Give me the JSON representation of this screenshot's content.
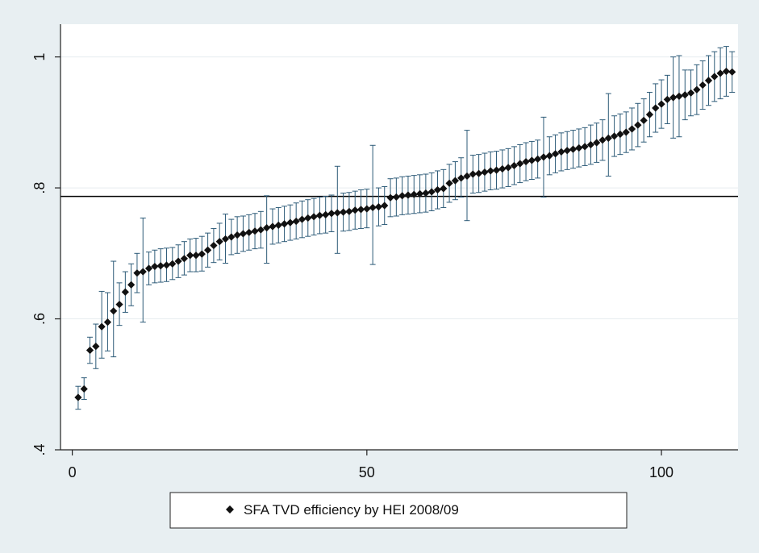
{
  "chart_data": {
    "type": "scatter",
    "title": "",
    "xlabel": "",
    "ylabel": "",
    "xlim": [
      -2,
      113
    ],
    "ylim": [
      0.4,
      1.05
    ],
    "x_ticks": [
      {
        "value": 0,
        "label": "0"
      },
      {
        "value": 50,
        "label": "50"
      },
      {
        "value": 100,
        "label": "100"
      }
    ],
    "y_ticks": [
      {
        "value": 0.4,
        "label": ".4"
      },
      {
        "value": 0.6,
        "label": ".6"
      },
      {
        "value": 0.8,
        "label": ".8"
      },
      {
        "value": 1.0,
        "label": "1"
      }
    ],
    "grid": {
      "horizontal": true,
      "vertical": false
    },
    "reference_line": {
      "y": 0.787
    },
    "legend": {
      "position": "bottom",
      "entries": [
        "SFA TVD efficiency by HEI 2008/09"
      ]
    },
    "colors": {
      "background": "#e8eff2",
      "plot_background": "#ffffff",
      "marker": "#111111",
      "error_bar": "#2d5b78",
      "grid": "#e6ecef",
      "axis": "#222222"
    },
    "series": [
      {
        "name": "SFA TVD efficiency by HEI 2008/09",
        "x": [
          1,
          2,
          3,
          4,
          5,
          6,
          7,
          8,
          9,
          10,
          11,
          12,
          13,
          14,
          15,
          16,
          17,
          18,
          19,
          20,
          21,
          22,
          23,
          24,
          25,
          26,
          27,
          28,
          29,
          30,
          31,
          32,
          33,
          34,
          35,
          36,
          37,
          38,
          39,
          40,
          41,
          42,
          43,
          44,
          45,
          46,
          47,
          48,
          49,
          50,
          51,
          52,
          53,
          54,
          55,
          56,
          57,
          58,
          59,
          60,
          61,
          62,
          63,
          64,
          65,
          66,
          67,
          68,
          69,
          70,
          71,
          72,
          73,
          74,
          75,
          76,
          77,
          78,
          79,
          80,
          81,
          82,
          83,
          84,
          85,
          86,
          87,
          88,
          89,
          90,
          91,
          92,
          93,
          94,
          95,
          96,
          97,
          98,
          99,
          100,
          101,
          102,
          103,
          104,
          105,
          106,
          107,
          108,
          109,
          110,
          111,
          112
        ],
        "y": [
          0.48,
          0.493,
          0.552,
          0.558,
          0.588,
          0.595,
          0.612,
          0.622,
          0.641,
          0.652,
          0.67,
          0.672,
          0.677,
          0.68,
          0.681,
          0.682,
          0.684,
          0.688,
          0.692,
          0.697,
          0.697,
          0.699,
          0.705,
          0.712,
          0.718,
          0.722,
          0.725,
          0.728,
          0.73,
          0.732,
          0.734,
          0.736,
          0.739,
          0.741,
          0.743,
          0.745,
          0.747,
          0.749,
          0.752,
          0.754,
          0.756,
          0.758,
          0.759,
          0.761,
          0.762,
          0.763,
          0.764,
          0.766,
          0.767,
          0.768,
          0.77,
          0.771,
          0.773,
          0.785,
          0.786,
          0.788,
          0.789,
          0.79,
          0.791,
          0.792,
          0.794,
          0.797,
          0.799,
          0.807,
          0.811,
          0.815,
          0.818,
          0.821,
          0.822,
          0.824,
          0.826,
          0.827,
          0.829,
          0.831,
          0.834,
          0.837,
          0.84,
          0.842,
          0.844,
          0.847,
          0.849,
          0.852,
          0.855,
          0.857,
          0.859,
          0.861,
          0.863,
          0.866,
          0.869,
          0.873,
          0.876,
          0.879,
          0.882,
          0.885,
          0.89,
          0.896,
          0.903,
          0.912,
          0.922,
          0.928,
          0.935,
          0.938,
          0.94,
          0.942,
          0.945,
          0.95,
          0.957,
          0.964,
          0.97,
          0.975,
          0.978,
          0.977
        ],
        "lower": [
          0.462,
          0.477,
          0.532,
          0.524,
          0.54,
          0.551,
          0.542,
          0.59,
          0.61,
          0.62,
          0.64,
          0.595,
          0.652,
          0.655,
          0.656,
          0.657,
          0.66,
          0.663,
          0.667,
          0.672,
          0.672,
          0.673,
          0.679,
          0.686,
          0.69,
          0.685,
          0.698,
          0.7,
          0.703,
          0.705,
          0.707,
          0.708,
          0.685,
          0.714,
          0.716,
          0.718,
          0.72,
          0.722,
          0.724,
          0.726,
          0.728,
          0.73,
          0.731,
          0.733,
          0.7,
          0.734,
          0.735,
          0.737,
          0.738,
          0.739,
          0.683,
          0.742,
          0.744,
          0.756,
          0.757,
          0.759,
          0.76,
          0.761,
          0.762,
          0.763,
          0.765,
          0.768,
          0.77,
          0.778,
          0.782,
          0.786,
          0.75,
          0.792,
          0.793,
          0.795,
          0.797,
          0.798,
          0.8,
          0.802,
          0.805,
          0.808,
          0.811,
          0.813,
          0.815,
          0.786,
          0.82,
          0.823,
          0.826,
          0.828,
          0.83,
          0.832,
          0.834,
          0.836,
          0.839,
          0.842,
          0.818,
          0.848,
          0.851,
          0.854,
          0.858,
          0.863,
          0.87,
          0.878,
          0.885,
          0.891,
          0.898,
          0.876,
          0.878,
          0.904,
          0.91,
          0.912,
          0.92,
          0.926,
          0.932,
          0.936,
          0.94,
          0.946
        ],
        "upper": [
          0.497,
          0.51,
          0.572,
          0.592,
          0.642,
          0.64,
          0.688,
          0.655,
          0.672,
          0.684,
          0.7,
          0.754,
          0.702,
          0.705,
          0.707,
          0.708,
          0.709,
          0.713,
          0.718,
          0.722,
          0.723,
          0.726,
          0.731,
          0.738,
          0.746,
          0.76,
          0.752,
          0.756,
          0.757,
          0.759,
          0.761,
          0.764,
          0.788,
          0.768,
          0.77,
          0.772,
          0.774,
          0.777,
          0.78,
          0.782,
          0.784,
          0.786,
          0.787,
          0.789,
          0.833,
          0.792,
          0.793,
          0.795,
          0.797,
          0.798,
          0.865,
          0.8,
          0.802,
          0.814,
          0.815,
          0.817,
          0.818,
          0.819,
          0.82,
          0.821,
          0.823,
          0.826,
          0.828,
          0.836,
          0.84,
          0.846,
          0.888,
          0.85,
          0.851,
          0.853,
          0.855,
          0.856,
          0.858,
          0.86,
          0.863,
          0.866,
          0.869,
          0.871,
          0.873,
          0.908,
          0.878,
          0.881,
          0.884,
          0.886,
          0.888,
          0.89,
          0.892,
          0.896,
          0.899,
          0.904,
          0.944,
          0.91,
          0.913,
          0.916,
          0.922,
          0.929,
          0.936,
          0.946,
          0.959,
          0.965,
          0.972,
          1.0,
          1.002,
          0.98,
          0.98,
          0.988,
          0.994,
          1.002,
          1.008,
          1.014,
          1.016,
          1.008
        ]
      }
    ]
  }
}
